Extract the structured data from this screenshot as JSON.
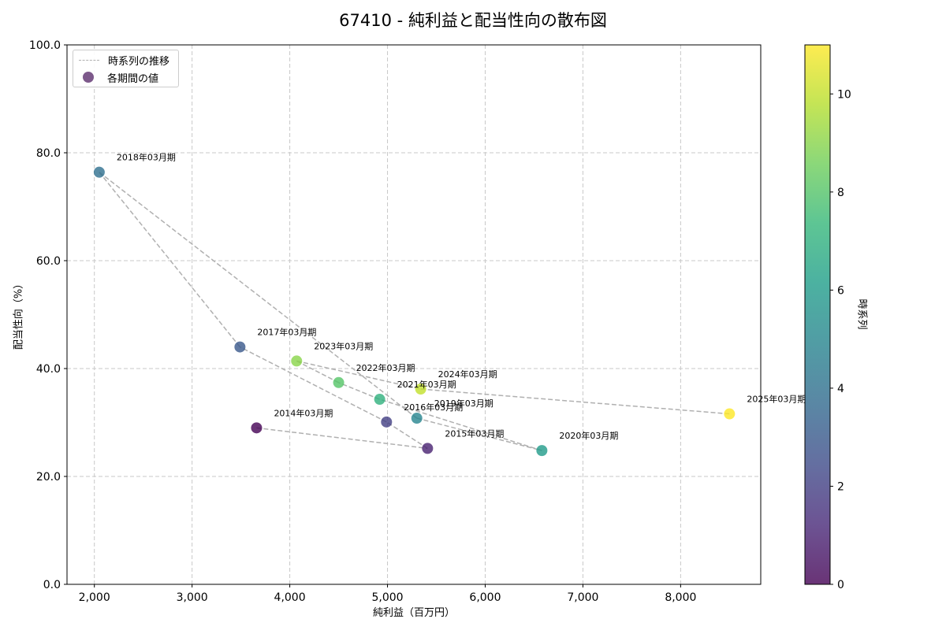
{
  "chart_data": {
    "type": "scatter",
    "title": "67410 - 純利益と配当性向の散布図",
    "xlabel": "純利益（百万円）",
    "ylabel": "配当性向（%）",
    "colorbar_label": "時系列",
    "xlim": [
      1720,
      8820
    ],
    "ylim": [
      0,
      100
    ],
    "colorbar_range": [
      0,
      11
    ],
    "x_ticks": [
      2000,
      3000,
      4000,
      5000,
      6000,
      7000,
      8000
    ],
    "x_tick_labels": [
      "2,000",
      "3,000",
      "4,000",
      "5,000",
      "6,000",
      "7,000",
      "8,000"
    ],
    "y_ticks": [
      0,
      20,
      40,
      60,
      80,
      100
    ],
    "y_tick_labels": [
      "0.0",
      "20.0",
      "40.0",
      "60.0",
      "80.0",
      "100.0"
    ],
    "colorbar_ticks": [
      0,
      2,
      4,
      6,
      8,
      10
    ],
    "grid": true,
    "legend_position": "top-left",
    "legend": {
      "line_label": "時系列の推移",
      "point_label": "各期間の値"
    },
    "points": [
      {
        "label": "2014年03月期",
        "x": 3660,
        "y": 29.0,
        "t": 0
      },
      {
        "label": "2015年03月期",
        "x": 5410,
        "y": 25.2,
        "t": 1
      },
      {
        "label": "2016年03月期",
        "x": 4990,
        "y": 30.1,
        "t": 2
      },
      {
        "label": "2017年03月期",
        "x": 3490,
        "y": 44.0,
        "t": 3
      },
      {
        "label": "2018年03月期",
        "x": 2050,
        "y": 76.4,
        "t": 4
      },
      {
        "label": "2019年03月期",
        "x": 5300,
        "y": 30.8,
        "t": 5
      },
      {
        "label": "2020年03月期",
        "x": 6580,
        "y": 24.8,
        "t": 6
      },
      {
        "label": "2021年03月期",
        "x": 4920,
        "y": 34.3,
        "t": 7
      },
      {
        "label": "2022年03月期",
        "x": 4500,
        "y": 37.4,
        "t": 8
      },
      {
        "label": "2023年03月期",
        "x": 4070,
        "y": 41.4,
        "t": 9
      },
      {
        "label": "2024年03月期",
        "x": 5340,
        "y": 36.2,
        "t": 10
      },
      {
        "label": "2025年03月期",
        "x": 8500,
        "y": 31.6,
        "t": 11
      }
    ]
  }
}
